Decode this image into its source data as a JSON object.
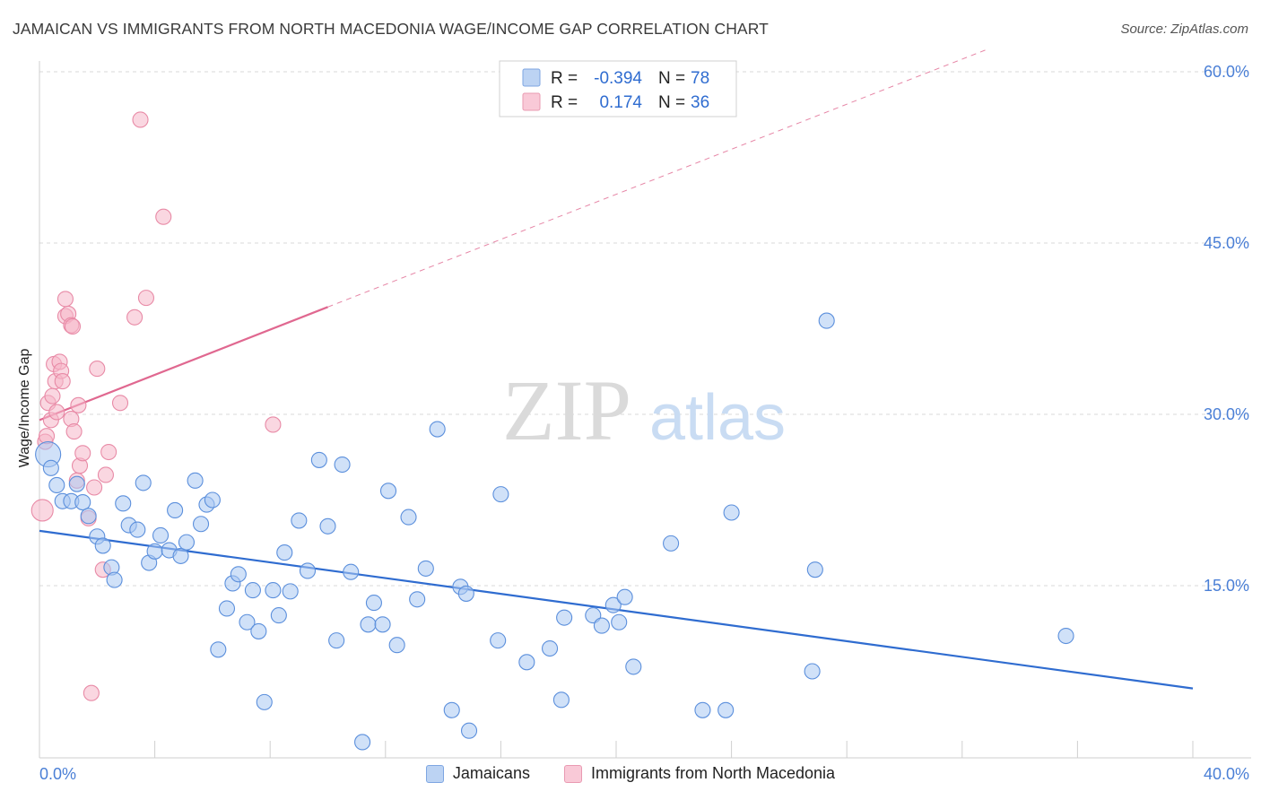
{
  "header": {
    "title": "JAMAICAN VS IMMIGRANTS FROM NORTH MACEDONIA WAGE/INCOME GAP CORRELATION CHART",
    "source": "Source: ZipAtlas.com"
  },
  "watermark": {
    "zip": "ZIP",
    "atlas": "atlas"
  },
  "legend": {
    "r_label": "R =",
    "n_label": "N =",
    "series": [
      {
        "name": "Jamaicans",
        "r": "-0.394",
        "n": "78"
      },
      {
        "name": "Immigrants from North Macedonia",
        "r": "0.174",
        "n": "36"
      }
    ]
  },
  "colors": {
    "blue_fill": "#a9c8f2",
    "blue_stroke": "#5b8fdc",
    "blue_line": "#2f6cd0",
    "pink_fill": "#f6b7c9",
    "pink_stroke": "#e88aa6",
    "pink_line": "#e06890",
    "grid": "#d8d8d8",
    "tick": "#4a7fd6"
  },
  "chart_data": {
    "type": "scatter",
    "title": "JAMAICAN VS IMMIGRANTS FROM NORTH MACEDONIA WAGE/INCOME GAP CORRELATION CHART",
    "xlabel": "",
    "ylabel": "Wage/Income Gap",
    "xlim": [
      0,
      40
    ],
    "ylim": [
      0,
      60
    ],
    "x_tick_labels": [
      "0.0%",
      "40.0%"
    ],
    "y_ticks": [
      15,
      30,
      45,
      60
    ],
    "y_tick_labels": [
      "15.0%",
      "30.0%",
      "45.0%",
      "60.0%"
    ],
    "legend_position": "top-center",
    "series": [
      {
        "name": "Jamaicans",
        "r": -0.394,
        "n": 78,
        "trend": {
          "x": [
            0,
            40
          ],
          "y": [
            19.8,
            6.0
          ],
          "dashed_to": null
        },
        "points": [
          {
            "x": 0.3,
            "y": 26.5,
            "s": 14
          },
          {
            "x": 0.4,
            "y": 25.3
          },
          {
            "x": 0.6,
            "y": 23.8
          },
          {
            "x": 0.8,
            "y": 22.4
          },
          {
            "x": 1.1,
            "y": 22.4
          },
          {
            "x": 1.3,
            "y": 23.9
          },
          {
            "x": 1.5,
            "y": 22.3
          },
          {
            "x": 1.7,
            "y": 21.1
          },
          {
            "x": 2.0,
            "y": 19.3
          },
          {
            "x": 2.2,
            "y": 18.5
          },
          {
            "x": 2.5,
            "y": 16.6
          },
          {
            "x": 2.6,
            "y": 15.5
          },
          {
            "x": 2.9,
            "y": 22.2
          },
          {
            "x": 3.1,
            "y": 20.3
          },
          {
            "x": 3.4,
            "y": 19.9
          },
          {
            "x": 3.6,
            "y": 24.0
          },
          {
            "x": 3.8,
            "y": 17.0
          },
          {
            "x": 4.0,
            "y": 18.0
          },
          {
            "x": 4.2,
            "y": 19.4
          },
          {
            "x": 4.5,
            "y": 18.1
          },
          {
            "x": 4.7,
            "y": 21.6
          },
          {
            "x": 4.9,
            "y": 17.6
          },
          {
            "x": 5.1,
            "y": 18.8
          },
          {
            "x": 5.4,
            "y": 24.2
          },
          {
            "x": 5.6,
            "y": 20.4
          },
          {
            "x": 5.8,
            "y": 22.1
          },
          {
            "x": 6.0,
            "y": 22.5
          },
          {
            "x": 6.2,
            "y": 9.4
          },
          {
            "x": 6.5,
            "y": 13.0
          },
          {
            "x": 6.7,
            "y": 15.2
          },
          {
            "x": 6.9,
            "y": 16.0
          },
          {
            "x": 7.2,
            "y": 11.8
          },
          {
            "x": 7.4,
            "y": 14.6
          },
          {
            "x": 7.6,
            "y": 11.0
          },
          {
            "x": 7.8,
            "y": 4.8
          },
          {
            "x": 8.1,
            "y": 14.6
          },
          {
            "x": 8.3,
            "y": 12.4
          },
          {
            "x": 8.5,
            "y": 17.9
          },
          {
            "x": 8.7,
            "y": 14.5
          },
          {
            "x": 9.0,
            "y": 20.7
          },
          {
            "x": 9.3,
            "y": 16.3
          },
          {
            "x": 9.7,
            "y": 26.0
          },
          {
            "x": 10.0,
            "y": 20.2
          },
          {
            "x": 10.3,
            "y": 10.2
          },
          {
            "x": 10.5,
            "y": 25.6
          },
          {
            "x": 10.8,
            "y": 16.2
          },
          {
            "x": 11.2,
            "y": 1.3
          },
          {
            "x": 11.4,
            "y": 11.6
          },
          {
            "x": 11.6,
            "y": 13.5
          },
          {
            "x": 11.9,
            "y": 11.6
          },
          {
            "x": 12.1,
            "y": 23.3
          },
          {
            "x": 12.4,
            "y": 9.8
          },
          {
            "x": 12.8,
            "y": 21.0
          },
          {
            "x": 13.1,
            "y": 13.8
          },
          {
            "x": 13.4,
            "y": 16.5
          },
          {
            "x": 13.8,
            "y": 28.7
          },
          {
            "x": 14.3,
            "y": 4.1
          },
          {
            "x": 14.6,
            "y": 14.9
          },
          {
            "x": 14.8,
            "y": 14.3
          },
          {
            "x": 14.9,
            "y": 2.3
          },
          {
            "x": 15.9,
            "y": 10.2
          },
          {
            "x": 16.0,
            "y": 23.0
          },
          {
            "x": 16.9,
            "y": 8.3
          },
          {
            "x": 17.7,
            "y": 9.5
          },
          {
            "x": 18.1,
            "y": 5.0
          },
          {
            "x": 18.2,
            "y": 12.2
          },
          {
            "x": 19.2,
            "y": 12.4
          },
          {
            "x": 19.5,
            "y": 11.5
          },
          {
            "x": 19.9,
            "y": 13.3
          },
          {
            "x": 20.1,
            "y": 11.8
          },
          {
            "x": 20.3,
            "y": 14.0
          },
          {
            "x": 20.6,
            "y": 7.9
          },
          {
            "x": 21.9,
            "y": 18.7
          },
          {
            "x": 23.0,
            "y": 4.1
          },
          {
            "x": 23.8,
            "y": 4.1
          },
          {
            "x": 24.0,
            "y": 21.4
          },
          {
            "x": 26.8,
            "y": 7.5
          },
          {
            "x": 26.9,
            "y": 16.4
          },
          {
            "x": 27.3,
            "y": 38.2
          },
          {
            "x": 35.6,
            "y": 10.6
          }
        ]
      },
      {
        "name": "Immigrants from North Macedonia",
        "r": 0.174,
        "n": 36,
        "trend": {
          "x": [
            0,
            10.0
          ],
          "y": [
            29.5,
            39.4
          ],
          "dashed_to": {
            "x": 40,
            "y": 69.0
          }
        },
        "points": [
          {
            "x": 0.1,
            "y": 21.6,
            "s": 12
          },
          {
            "x": 0.2,
            "y": 27.6
          },
          {
            "x": 0.25,
            "y": 28.1
          },
          {
            "x": 0.3,
            "y": 31.0
          },
          {
            "x": 0.4,
            "y": 29.5
          },
          {
            "x": 0.45,
            "y": 31.6
          },
          {
            "x": 0.5,
            "y": 34.4
          },
          {
            "x": 0.55,
            "y": 32.9
          },
          {
            "x": 0.6,
            "y": 30.2
          },
          {
            "x": 0.7,
            "y": 34.6
          },
          {
            "x": 0.75,
            "y": 33.8
          },
          {
            "x": 0.8,
            "y": 32.9
          },
          {
            "x": 0.9,
            "y": 38.6
          },
          {
            "x": 0.9,
            "y": 40.1
          },
          {
            "x": 1.0,
            "y": 38.8
          },
          {
            "x": 1.1,
            "y": 37.8
          },
          {
            "x": 1.1,
            "y": 29.6
          },
          {
            "x": 1.15,
            "y": 37.7
          },
          {
            "x": 1.2,
            "y": 28.5
          },
          {
            "x": 1.3,
            "y": 24.2
          },
          {
            "x": 1.35,
            "y": 30.8
          },
          {
            "x": 1.4,
            "y": 25.5
          },
          {
            "x": 1.5,
            "y": 26.6
          },
          {
            "x": 1.7,
            "y": 20.9
          },
          {
            "x": 1.8,
            "y": 5.6
          },
          {
            "x": 1.9,
            "y": 23.6
          },
          {
            "x": 2.0,
            "y": 34.0
          },
          {
            "x": 2.2,
            "y": 16.4
          },
          {
            "x": 2.3,
            "y": 24.7
          },
          {
            "x": 2.4,
            "y": 26.7
          },
          {
            "x": 2.8,
            "y": 31.0
          },
          {
            "x": 3.3,
            "y": 38.5
          },
          {
            "x": 3.5,
            "y": 55.8
          },
          {
            "x": 3.7,
            "y": 40.2
          },
          {
            "x": 4.3,
            "y": 47.3
          },
          {
            "x": 8.1,
            "y": 29.1
          }
        ]
      }
    ]
  }
}
